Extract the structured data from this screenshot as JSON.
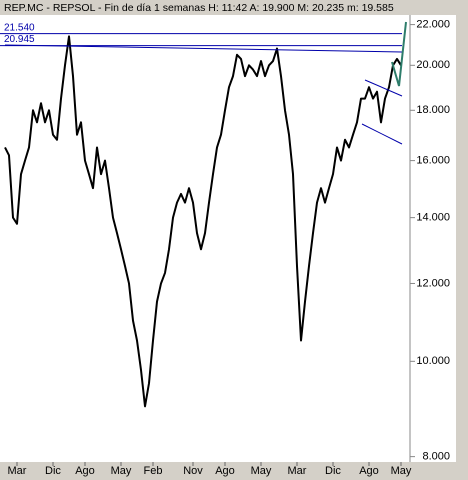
{
  "chart_data": {
    "type": "line",
    "title": "REP.MC - REPSOL - Fin de día 1 semanas  H: 11:42  A: 19.900  M: 20.235  m: 19.585",
    "categories": [
      null,
      null,
      null,
      "Mar",
      null,
      null,
      null,
      null,
      null,
      null,
      null,
      null,
      "Dic",
      null,
      null,
      null,
      null,
      null,
      null,
      null,
      "Ago",
      null,
      null,
      null,
      null,
      null,
      null,
      null,
      null,
      "May",
      null,
      null,
      null,
      null,
      null,
      null,
      null,
      "Feb",
      null,
      null,
      null,
      null,
      null,
      null,
      null,
      null,
      null,
      "Nov",
      null,
      null,
      null,
      null,
      null,
      null,
      null,
      "Ago",
      null,
      null,
      null,
      null,
      null,
      null,
      null,
      null,
      "May",
      null,
      null,
      null,
      null,
      null,
      null,
      null,
      null,
      "Mar",
      null,
      null,
      null,
      null,
      null,
      null,
      null,
      null,
      "Dic",
      null,
      null,
      null,
      null,
      null,
      null,
      null,
      null,
      "Ago",
      null,
      null,
      null,
      null,
      null,
      null,
      null,
      "May"
    ],
    "series": [
      {
        "color": "#000000",
        "values": [
          16.5,
          16.2,
          14.0,
          13.8,
          15.5,
          16.0,
          16.5,
          18.0,
          17.5,
          18.3,
          17.5,
          18.0,
          17.0,
          16.8,
          18.5,
          20.0,
          21.4,
          19.5,
          17.0,
          17.5,
          16.0,
          15.5,
          15.0,
          16.5,
          15.5,
          16.0,
          15.0,
          14.0,
          13.5,
          13.0,
          12.5,
          12.0,
          11.0,
          10.5,
          9.8,
          9.0,
          9.5,
          10.5,
          11.5,
          12.0,
          12.3,
          13.0,
          14.0,
          14.5,
          14.8,
          14.5,
          15.0,
          14.5,
          13.5,
          13.0,
          13.5,
          14.5,
          15.5,
          16.5,
          17.0,
          18.0,
          19.0,
          19.5,
          20.5,
          20.3,
          19.5,
          20.0,
          19.8,
          19.5,
          20.2,
          19.5,
          20.0,
          20.2,
          20.8,
          19.5,
          18.0,
          17.0,
          15.5,
          12.5,
          10.5,
          11.5,
          12.5,
          13.5,
          14.5,
          15.0,
          14.5,
          15.0,
          15.5,
          16.5,
          16.0,
          16.8,
          16.5,
          17.0,
          17.5,
          18.5,
          18.5,
          19.0,
          18.5,
          18.8,
          17.5,
          18.5,
          19.0,
          20.0,
          20.3,
          20.0
        ]
      }
    ],
    "log_scale": true,
    "ylim": [
      7.9,
      22.5
    ],
    "yticks": [
      {
        "value": 8,
        "label": "8.000"
      },
      {
        "value": 10,
        "label": "10.000"
      },
      {
        "value": 12,
        "label": "12.000"
      },
      {
        "value": 14,
        "label": "14.000"
      },
      {
        "value": 16,
        "label": "16.000"
      },
      {
        "value": 18,
        "label": "18.000"
      },
      {
        "value": 20,
        "label": "20.000"
      },
      {
        "value": 22,
        "label": "22.000"
      }
    ],
    "levels": [
      {
        "value": 21.54,
        "label": "21.540",
        "color": "#0000aa"
      },
      {
        "value": 20.945,
        "label": "20.945",
        "color": "#0000aa"
      }
    ]
  }
}
